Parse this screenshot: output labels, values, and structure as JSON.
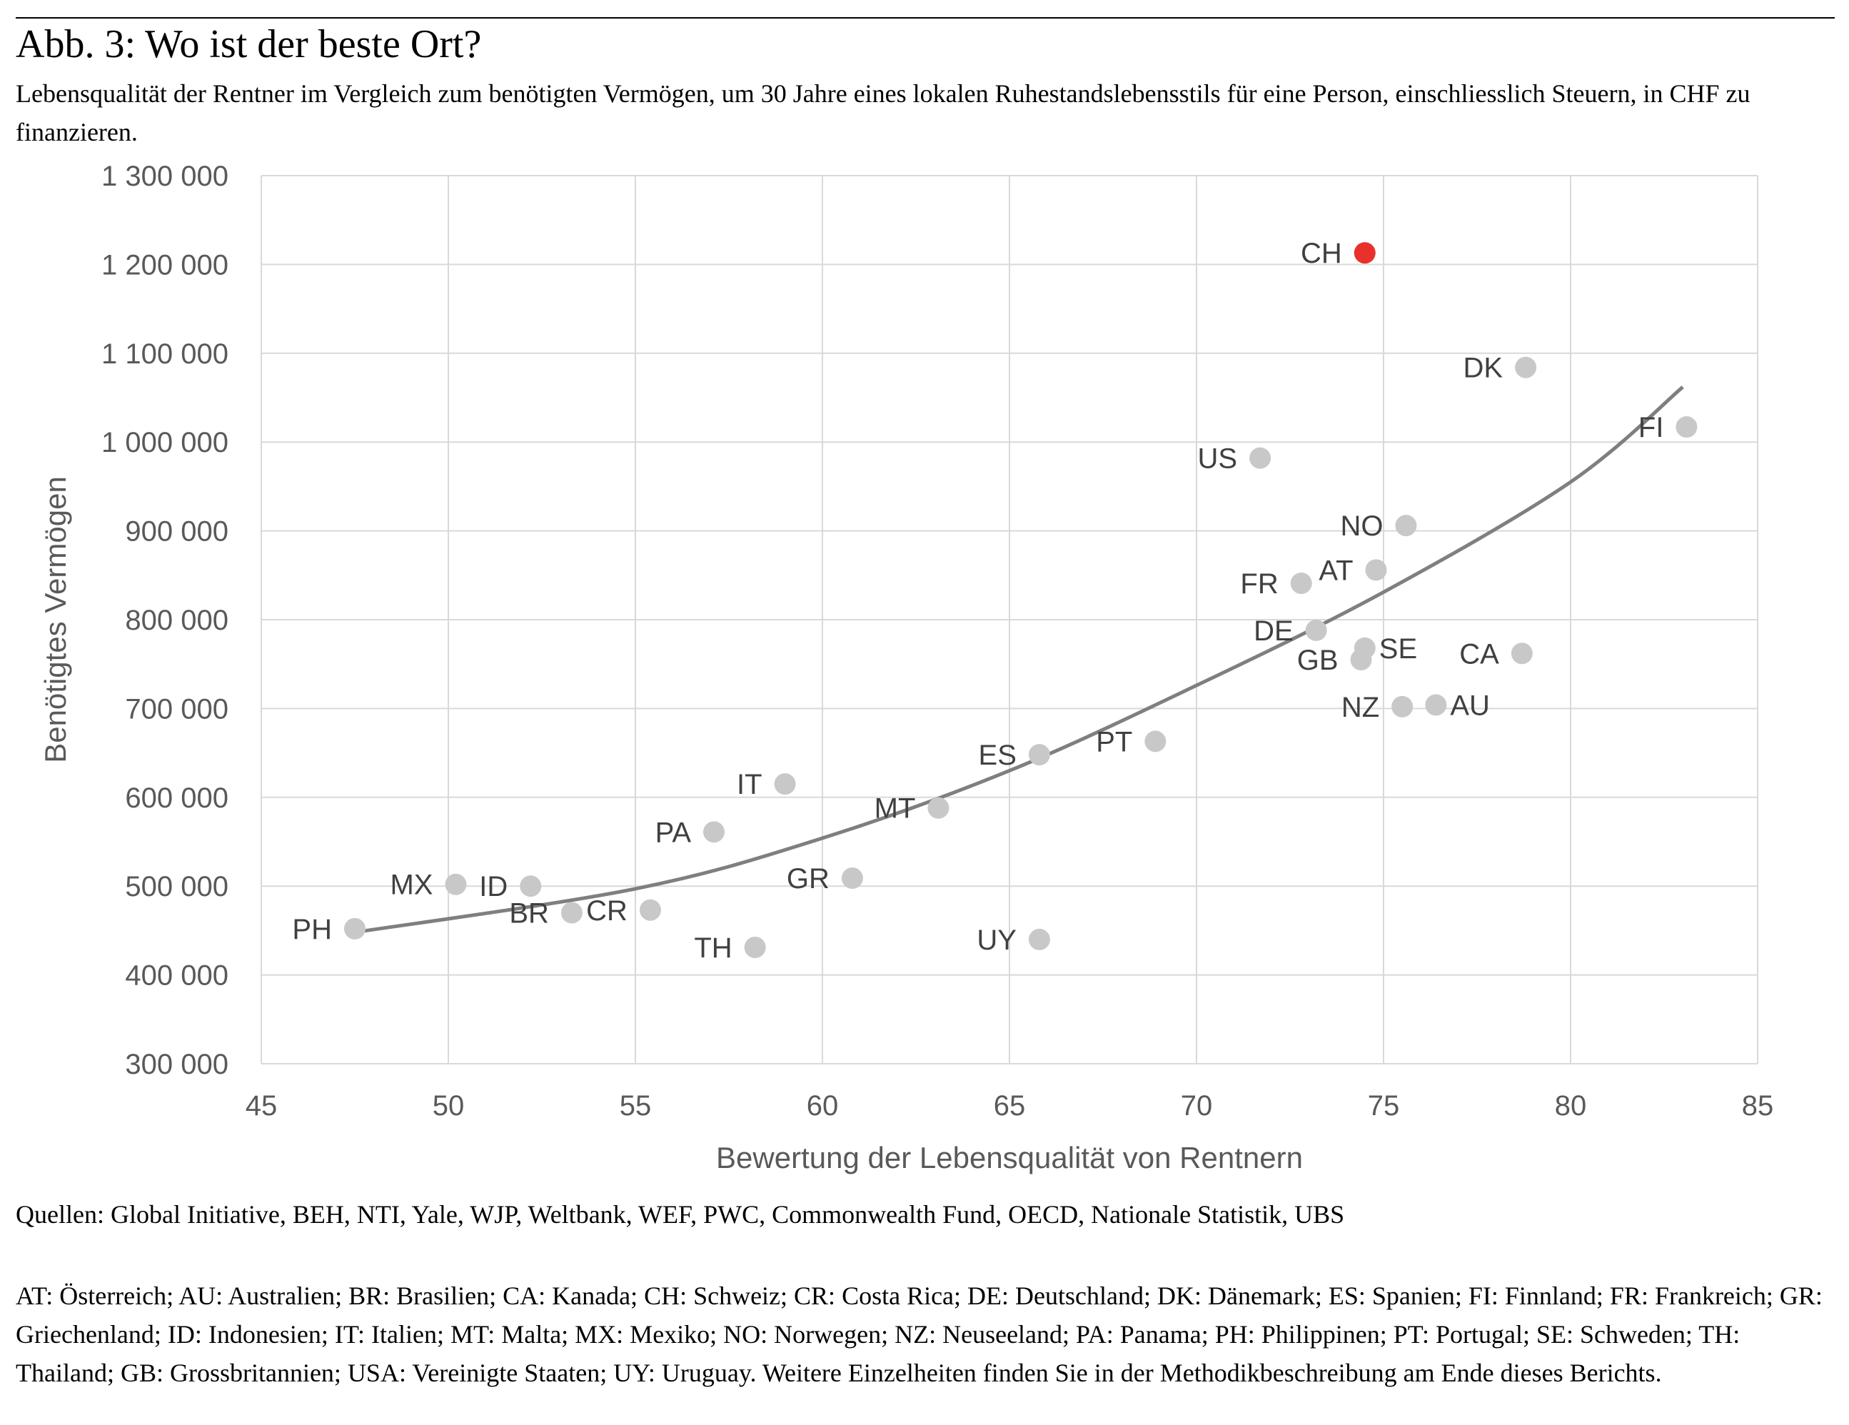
{
  "figure": {
    "title": "Abb. 3: Wo ist der beste Ort?",
    "subtitle": "Lebensqualität der Rentner im Vergleich zum benötigten Vermögen, um 30 Jahre eines lokalen Ruhestandslebensstils für eine Person, einschliesslich Steuern, in CHF zu finanzieren.",
    "sources": "Quellen: Global Initiative, BEH, NTI, Yale, WJP, Weltbank, WEF, PWC, Commonwealth Fund, OECD, Nationale Statistik, UBS",
    "legend_text": "AT: Österreich; AU: Australien; BR: Brasilien; CA: Kanada; CH: Schweiz; CR: Costa Rica; DE: Deutschland; DK: Dänemark; ES: Spanien; FI: Finnland; FR: Frankreich; GR: Griechenland; ID: Indonesien; IT: Italien; MT: Malta; MX: Mexiko; NO: Norwegen; NZ: Neuseeland; PA: Panama; PH: Philippinen; PT: Portugal; SE: Schweden; TH: Thailand; GB: Grossbritannien; USA: Vereinigte Staaten; UY: Uruguay. Weitere Einzelheiten finden Sie in der Methodikbeschreibung am Ende dieses Berichts."
  },
  "chart_data": {
    "type": "scatter",
    "xlabel": "Bewertung der Lebensqualität von Rentnern",
    "ylabel": "Benötigtes Vermögen",
    "xlim": [
      45,
      85
    ],
    "ylim": [
      300000,
      1300000
    ],
    "x_ticks": [
      45,
      50,
      55,
      60,
      65,
      70,
      75,
      80,
      85
    ],
    "x_tick_labels": [
      "45",
      "50",
      "55",
      "60",
      "65",
      "70",
      "75",
      "80",
      "85"
    ],
    "y_ticks": [
      300000,
      400000,
      500000,
      600000,
      700000,
      800000,
      900000,
      1000000,
      1100000,
      1200000,
      1300000
    ],
    "y_tick_labels": [
      "300 000",
      "400 000",
      "500 000",
      "600 000",
      "700 000",
      "800 000",
      "900 000",
      "1 000 000",
      "1 100 000",
      "1 200 000",
      "1 300 000"
    ],
    "grid": true,
    "colors": {
      "point": "#c8c8c8",
      "highlight": "#e8312a",
      "trend": "#7f7f7f",
      "grid": "#d9d9d9"
    },
    "points": [
      {
        "label": "PH",
        "x": 47.5,
        "y": 452000,
        "label_side": "left"
      },
      {
        "label": "MX",
        "x": 50.2,
        "y": 502000,
        "label_side": "left"
      },
      {
        "label": "ID",
        "x": 52.2,
        "y": 500000,
        "label_side": "left"
      },
      {
        "label": "BR",
        "x": 53.3,
        "y": 470000,
        "label_side": "left"
      },
      {
        "label": "CR",
        "x": 55.4,
        "y": 473000,
        "label_side": "left"
      },
      {
        "label": "TH",
        "x": 58.2,
        "y": 431000,
        "label_side": "left"
      },
      {
        "label": "PA",
        "x": 57.1,
        "y": 561000,
        "label_side": "left"
      },
      {
        "label": "IT",
        "x": 59.0,
        "y": 615000,
        "label_side": "left"
      },
      {
        "label": "GR",
        "x": 60.8,
        "y": 509000,
        "label_side": "left"
      },
      {
        "label": "MT",
        "x": 63.1,
        "y": 588000,
        "label_side": "left"
      },
      {
        "label": "UY",
        "x": 65.8,
        "y": 440000,
        "label_side": "left"
      },
      {
        "label": "ES",
        "x": 65.8,
        "y": 648000,
        "label_side": "left"
      },
      {
        "label": "PT",
        "x": 68.9,
        "y": 663000,
        "label_side": "left"
      },
      {
        "label": "US",
        "x": 71.7,
        "y": 982000,
        "label_side": "left"
      },
      {
        "label": "FR",
        "x": 72.8,
        "y": 841000,
        "label_side": "left"
      },
      {
        "label": "DE",
        "x": 73.2,
        "y": 788000,
        "label_side": "left"
      },
      {
        "label": "GB",
        "x": 74.4,
        "y": 755000,
        "label_side": "left"
      },
      {
        "label": "SE",
        "x": 74.5,
        "y": 768000,
        "label_side": "right"
      },
      {
        "label": "AT",
        "x": 74.8,
        "y": 856000,
        "label_side": "left"
      },
      {
        "label": "NZ",
        "x": 75.5,
        "y": 702000,
        "label_side": "left"
      },
      {
        "label": "NO",
        "x": 75.6,
        "y": 906000,
        "label_side": "left"
      },
      {
        "label": "AU",
        "x": 76.4,
        "y": 704000,
        "label_side": "right"
      },
      {
        "label": "CH",
        "x": 74.5,
        "y": 1213000,
        "label_side": "left",
        "highlight": true
      },
      {
        "label": "CA",
        "x": 78.7,
        "y": 762000,
        "label_side": "left"
      },
      {
        "label": "DK",
        "x": 78.8,
        "y": 1084000,
        "label_side": "left"
      },
      {
        "label": "FI",
        "x": 83.1,
        "y": 1017000,
        "label_side": "left"
      }
    ],
    "trendline": {
      "type": "polynomial-2",
      "x_range": [
        47.5,
        83.0
      ],
      "points": [
        [
          47.5,
          448000
        ],
        [
          55,
          497000
        ],
        [
          60,
          554000
        ],
        [
          65,
          630000
        ],
        [
          70,
          726000
        ],
        [
          75,
          831000
        ],
        [
          80,
          955000
        ],
        [
          83,
          1062000
        ]
      ]
    }
  }
}
